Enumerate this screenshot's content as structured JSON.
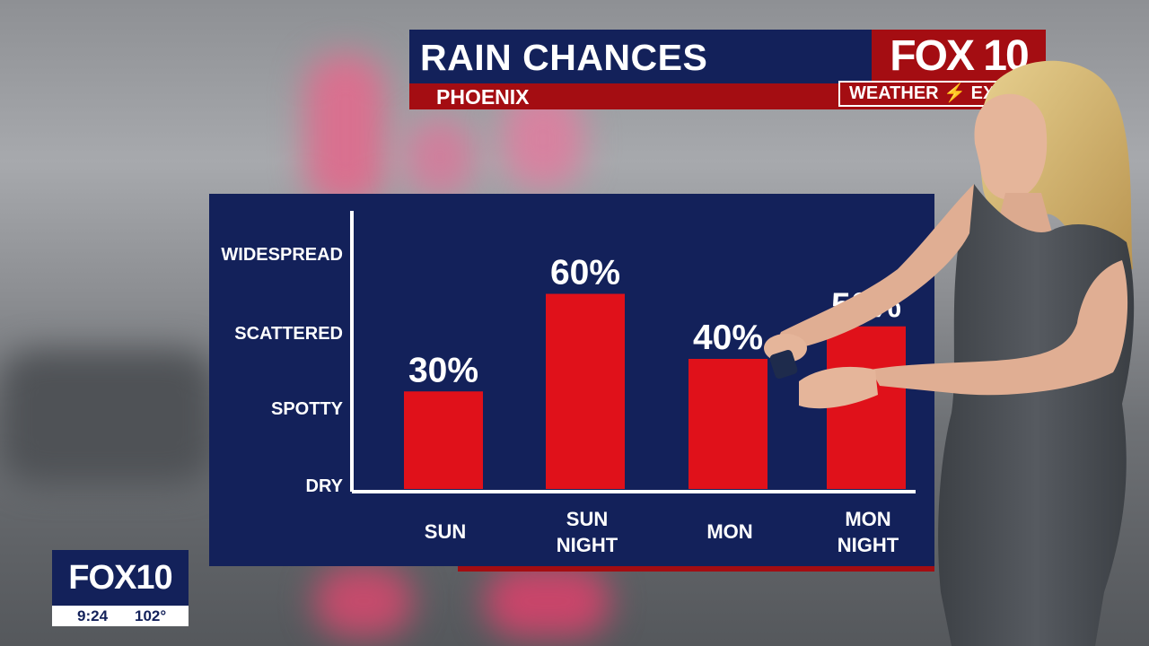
{
  "header": {
    "title": "RAIN CHANCES",
    "subtitle": "PHOENIX",
    "logo": "FOX 10",
    "weather_tag": "WEATHER ⚡ EX"
  },
  "chart_data": {
    "type": "bar",
    "title": "RAIN CHANCES",
    "subtitle": "PHOENIX",
    "categories": [
      [
        "SUN"
      ],
      [
        "SUN",
        "NIGHT"
      ],
      [
        "MON"
      ],
      [
        "MON",
        "NIGHT"
      ]
    ],
    "values": [
      30,
      60,
      40,
      50
    ],
    "value_labels": [
      "30%",
      "60%",
      "40%",
      "50%"
    ],
    "y_levels": [
      "DRY",
      "SPOTTY",
      "SCATTERED",
      "WIDESPREAD"
    ],
    "ylim": [
      0,
      80
    ],
    "grid": false,
    "colors": {
      "bar": "#e0111a",
      "panel": "#13215a",
      "axis": "#ffffff",
      "text": "#ffffff"
    }
  },
  "bug": {
    "logo": "FOX10",
    "time": "9:24",
    "temp": "102°"
  }
}
